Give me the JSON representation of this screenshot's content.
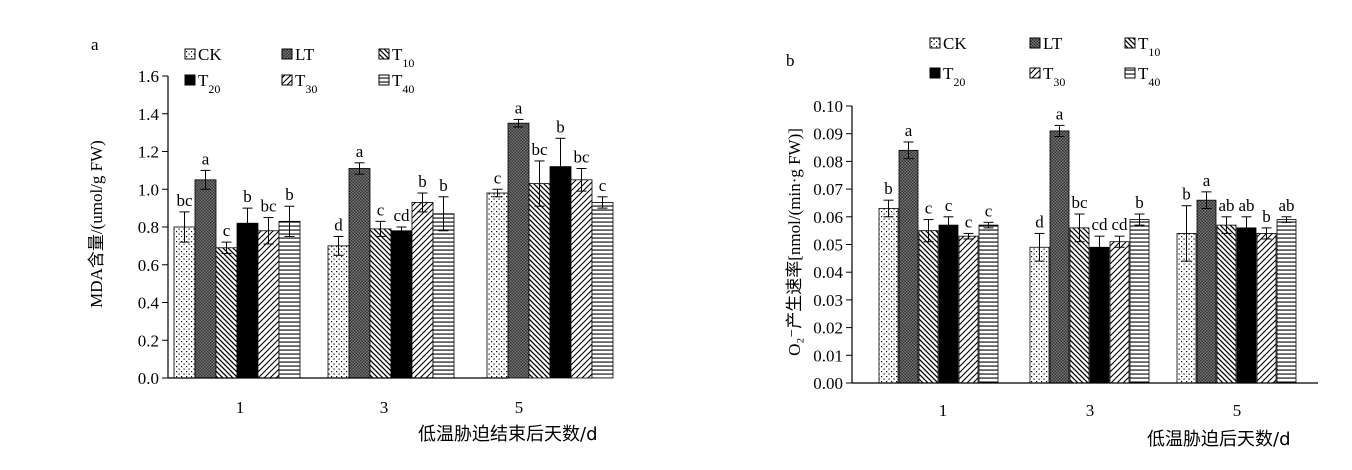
{
  "chart_data": [
    {
      "type": "bar",
      "panel_label": "a",
      "categories": [
        "1",
        "3",
        "5"
      ],
      "xlabel": "低温胁迫结束后天数/d",
      "ylabel": "MDA含量/(umol/g FW)",
      "ylim": [
        0,
        1.6
      ],
      "yticks": [
        "0.0",
        "0.2",
        "0.4",
        "0.6",
        "0.8",
        "1.0",
        "1.2",
        "1.4",
        "1.6"
      ],
      "legend": [
        {
          "base": "CK",
          "sub": ""
        },
        {
          "base": "LT",
          "sub": ""
        },
        {
          "base": "T",
          "sub": "10"
        },
        {
          "base": "T",
          "sub": "20"
        },
        {
          "base": "T",
          "sub": "30"
        },
        {
          "base": "T",
          "sub": "40"
        }
      ],
      "series": [
        {
          "name": "CK",
          "values": [
            0.8,
            0.7,
            0.98
          ],
          "errors": [
            0.08,
            0.05,
            0.02
          ],
          "letters": [
            "bc",
            "d",
            "c"
          ]
        },
        {
          "name": "LT",
          "values": [
            1.05,
            1.11,
            1.35
          ],
          "errors": [
            0.05,
            0.03,
            0.02
          ],
          "letters": [
            "a",
            "a",
            "a"
          ]
        },
        {
          "name": "T10",
          "values": [
            0.69,
            0.79,
            1.03
          ],
          "errors": [
            0.03,
            0.04,
            0.12
          ],
          "letters": [
            "c",
            "c",
            "bc"
          ]
        },
        {
          "name": "T20",
          "values": [
            0.82,
            0.78,
            1.12
          ],
          "errors": [
            0.08,
            0.02,
            0.15
          ],
          "letters": [
            "b",
            "cd",
            "b"
          ]
        },
        {
          "name": "T30",
          "values": [
            0.78,
            0.93,
            1.05
          ],
          "errors": [
            0.07,
            0.05,
            0.06
          ],
          "letters": [
            "bc",
            "b",
            "bc"
          ]
        },
        {
          "name": "T40",
          "values": [
            0.83,
            0.87,
            0.93
          ],
          "errors": [
            0.08,
            0.09,
            0.03
          ],
          "letters": [
            "b",
            "b",
            "c"
          ]
        }
      ]
    },
    {
      "type": "bar",
      "panel_label": "b",
      "categories": [
        "1",
        "3",
        "5"
      ],
      "xlabel": "低温胁迫后天数/d",
      "ylabel": "O₂⁻产生速率[nmol/(min·g FW)]",
      "ylim": [
        0,
        0.1
      ],
      "yticks": [
        "0.00",
        "0.01",
        "0.02",
        "0.03",
        "0.04",
        "0.05",
        "0.06",
        "0.07",
        "0.08",
        "0.09",
        "0.10"
      ],
      "legend": [
        {
          "base": "CK",
          "sub": ""
        },
        {
          "base": "LT",
          "sub": ""
        },
        {
          "base": "T",
          "sub": "10"
        },
        {
          "base": "T",
          "sub": "20"
        },
        {
          "base": "T",
          "sub": "30"
        },
        {
          "base": "T",
          "sub": "40"
        }
      ],
      "series": [
        {
          "name": "CK",
          "values": [
            0.063,
            0.049,
            0.054
          ],
          "errors": [
            0.003,
            0.005,
            0.01
          ],
          "letters": [
            "b",
            "d",
            "b"
          ]
        },
        {
          "name": "LT",
          "values": [
            0.084,
            0.091,
            0.066
          ],
          "errors": [
            0.003,
            0.002,
            0.003
          ],
          "letters": [
            "a",
            "a",
            "a"
          ]
        },
        {
          "name": "T10",
          "values": [
            0.055,
            0.056,
            0.057
          ],
          "errors": [
            0.004,
            0.005,
            0.003
          ],
          "letters": [
            "c",
            "bc",
            "ab"
          ]
        },
        {
          "name": "T20",
          "values": [
            0.057,
            0.049,
            0.056
          ],
          "errors": [
            0.003,
            0.004,
            0.004
          ],
          "letters": [
            "c",
            "cd",
            "ab"
          ]
        },
        {
          "name": "T30",
          "values": [
            0.053,
            0.051,
            0.054
          ],
          "errors": [
            0.001,
            0.002,
            0.002
          ],
          "letters": [
            "c",
            "cd",
            "b"
          ]
        },
        {
          "name": "T40",
          "values": [
            0.057,
            0.059,
            0.059
          ],
          "errors": [
            0.001,
            0.002,
            0.001
          ],
          "letters": [
            "c",
            "b",
            "ab"
          ]
        }
      ]
    }
  ]
}
